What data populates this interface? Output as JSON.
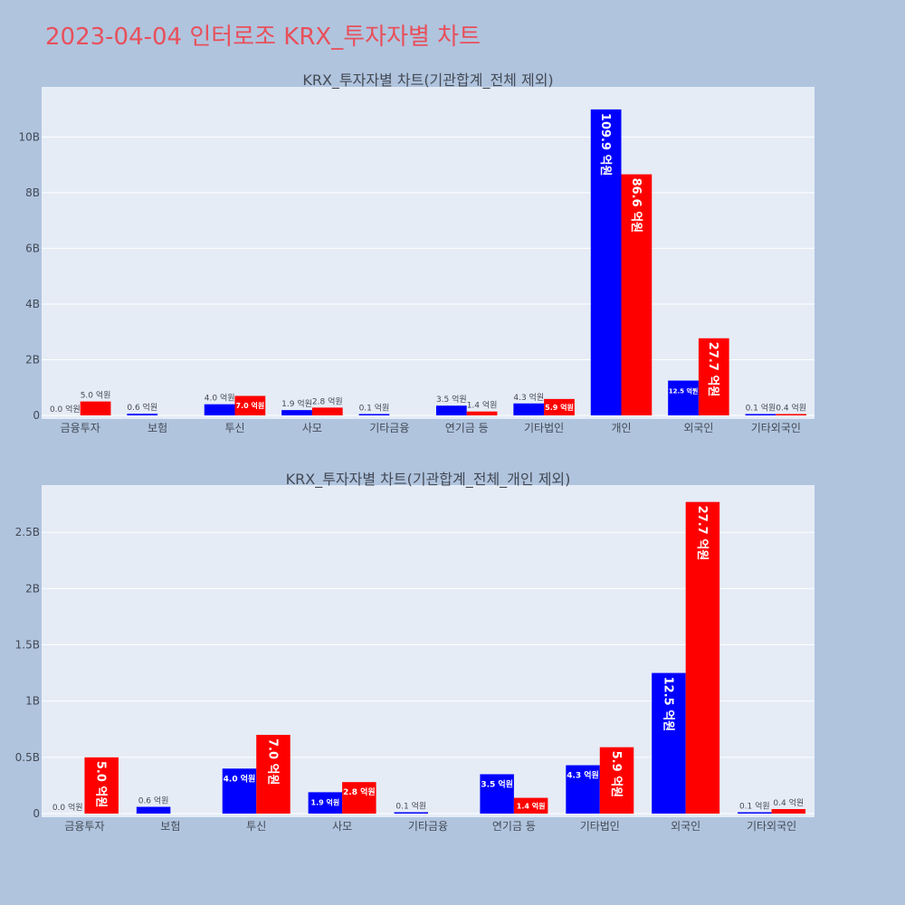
{
  "title": "2023-04-04 인터로조 KRX_투자자별 차트",
  "colors": {
    "buy": "#0000ff",
    "sell": "#ff0000",
    "background": "#b0c4de",
    "plot_bg": "#e5ecf6",
    "title": "#e8505b"
  },
  "chart_data": [
    {
      "type": "bar",
      "title": "KRX_투자자별 차트(기관합계_전체 제외)",
      "categories": [
        "금융투자",
        "보험",
        "투신",
        "사모",
        "기타금융",
        "연기금 등",
        "기타법인",
        "개인",
        "외국인",
        "기타외국인"
      ],
      "ylim": [
        0,
        11800000000
      ],
      "yticks": [
        0,
        2000000000,
        4000000000,
        6000000000,
        8000000000,
        10000000000
      ],
      "ytick_labels": [
        "0",
        "2B",
        "4B",
        "6B",
        "8B",
        "10B"
      ],
      "series": [
        {
          "name": "buy",
          "color": "#0000ff",
          "values": [
            0,
            60000000,
            400000000,
            190000000,
            10000000,
            350000000,
            430000000,
            10990000000,
            1250000000,
            10000000
          ],
          "labels": [
            "0.0 억원",
            "0.6 억원",
            "4.0 억원",
            "1.9 억원",
            "0.1 억원",
            "3.5 억원",
            "4.3 억원",
            "109.9 억원",
            "12.5 억원",
            "0.1 억원"
          ]
        },
        {
          "name": "sell",
          "color": "#ff0000",
          "values": [
            500000000,
            0,
            700000000,
            280000000,
            0,
            140000000,
            590000000,
            8660000000,
            2770000000,
            40000000
          ],
          "labels": [
            "5.0 억원",
            "",
            "7.0 억원",
            "2.8 억원",
            "",
            "1.4 억원",
            "5.9 억원",
            "86.6 억원",
            "27.7 억원",
            "0.4 억원"
          ]
        }
      ]
    },
    {
      "type": "bar",
      "title": "KRX_투자자별 차트(기관합계_전체_개인 제외)",
      "categories": [
        "금융투자",
        "보험",
        "투신",
        "사모",
        "기타금융",
        "연기금 등",
        "기타법인",
        "외국인",
        "기타외국인"
      ],
      "ylim": [
        0,
        2920000000
      ],
      "yticks": [
        0,
        500000000,
        1000000000,
        1500000000,
        2000000000,
        2500000000
      ],
      "ytick_labels": [
        "0",
        "0.5B",
        "1B",
        "1.5B",
        "2B",
        "2.5B"
      ],
      "series": [
        {
          "name": "buy",
          "color": "#0000ff",
          "values": [
            0,
            60000000,
            400000000,
            190000000,
            10000000,
            350000000,
            430000000,
            1250000000,
            10000000
          ],
          "labels": [
            "0.0 억원",
            "0.6 억원",
            "4.0 억원",
            "1.9 억원",
            "0.1 억원",
            "3.5 억원",
            "4.3 억원",
            "12.5 억원",
            "0.1 억원"
          ]
        },
        {
          "name": "sell",
          "color": "#ff0000",
          "values": [
            500000000,
            0,
            700000000,
            280000000,
            0,
            140000000,
            590000000,
            2770000000,
            40000000
          ],
          "labels": [
            "5.0 억원",
            "",
            "7.0 억원",
            "2.8 억원",
            "",
            "1.4 억원",
            "5.9 억원",
            "27.7 억원",
            "0.4 억원"
          ]
        }
      ]
    }
  ]
}
